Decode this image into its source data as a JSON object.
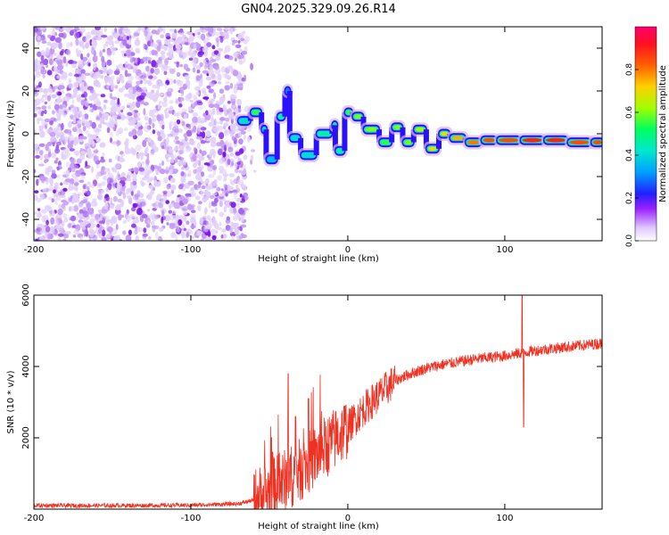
{
  "figure_title": "GN04.2025.329.09.26.R14",
  "chart_data": [
    {
      "type": "heatmap",
      "panel": "spectrogram",
      "xlabel": "Height of straight line (km)",
      "ylabel": "Frequency (Hz)",
      "xlim": [
        -200,
        162
      ],
      "ylim": [
        -50,
        50
      ],
      "xticks": [
        -200,
        -100,
        0,
        100
      ],
      "xtick_labels": [
        "-200",
        "-100",
        "0",
        "100"
      ],
      "yticks": [
        -40,
        -20,
        0,
        20,
        40
      ],
      "ytick_labels": [
        "-40",
        "-20",
        "0",
        "20",
        "40"
      ],
      "colorbar": {
        "label": "Normalized spectral amplitude",
        "range": [
          0,
          1
        ],
        "ticks": [
          0.0,
          0.2,
          0.4,
          0.6,
          0.8
        ],
        "tick_labels": [
          "0.0",
          "0.2",
          "0.4",
          "0.6",
          "0.8"
        ],
        "colormap": [
          "#ffffff",
          "#d6b3ff",
          "#8800ff",
          "#0000ff",
          "#00d8ff",
          "#00ff80",
          "#a0ff00",
          "#ffb000",
          "#ff2000",
          "#ff0060"
        ]
      },
      "noise_region": {
        "x_range": [
          -200,
          -65
        ],
        "amplitude": 0.15
      },
      "signal_track": [
        {
          "x": -70,
          "f": 6,
          "a": 0.4
        },
        {
          "x": -62,
          "f": 10,
          "a": 0.55
        },
        {
          "x": -55,
          "f": 2,
          "a": 0.4
        },
        {
          "x": -52,
          "f": -12,
          "a": 0.35
        },
        {
          "x": -45,
          "f": 8,
          "a": 0.45
        },
        {
          "x": -40,
          "f": 20,
          "a": 0.3
        },
        {
          "x": -37,
          "f": -2,
          "a": 0.4
        },
        {
          "x": -30,
          "f": -10,
          "a": 0.4
        },
        {
          "x": -20,
          "f": 0,
          "a": 0.45
        },
        {
          "x": -10,
          "f": 4,
          "a": 0.5
        },
        {
          "x": -8,
          "f": -8,
          "a": 0.45
        },
        {
          "x": -2,
          "f": 10,
          "a": 0.55
        },
        {
          "x": 3,
          "f": 8,
          "a": 0.6
        },
        {
          "x": 10,
          "f": 2,
          "a": 0.6
        },
        {
          "x": 20,
          "f": -4,
          "a": 0.55
        },
        {
          "x": 28,
          "f": 3,
          "a": 0.6
        },
        {
          "x": 35,
          "f": -4,
          "a": 0.6
        },
        {
          "x": 42,
          "f": 2,
          "a": 0.65
        },
        {
          "x": 50,
          "f": -7,
          "a": 0.7
        },
        {
          "x": 58,
          "f": 0,
          "a": 0.7
        },
        {
          "x": 65,
          "f": -2,
          "a": 0.75
        },
        {
          "x": 75,
          "f": -4,
          "a": 0.8
        },
        {
          "x": 85,
          "f": -3,
          "a": 0.85
        },
        {
          "x": 95,
          "f": -3,
          "a": 0.85
        },
        {
          "x": 110,
          "f": -3,
          "a": 0.9
        },
        {
          "x": 125,
          "f": -3,
          "a": 0.9
        },
        {
          "x": 140,
          "f": -4,
          "a": 0.85
        },
        {
          "x": 155,
          "f": -4,
          "a": 0.85
        }
      ]
    },
    {
      "type": "line",
      "panel": "snr",
      "xlabel": "Height of straight line (km)",
      "ylabel": "SNR (10 * v/v)",
      "xlim": [
        -200,
        162
      ],
      "ylim": [
        0,
        6000
      ],
      "xticks": [
        -200,
        -100,
        0,
        100
      ],
      "xtick_labels": [
        "-200",
        "-100",
        "0",
        "100"
      ],
      "yticks": [
        2000,
        4000,
        6000
      ],
      "ytick_labels": [
        "2000",
        "4000",
        "6000"
      ],
      "line_color": "#f03020",
      "envelope": [
        {
          "x": -200,
          "y": 100
        },
        {
          "x": -150,
          "y": 100
        },
        {
          "x": -100,
          "y": 110
        },
        {
          "x": -70,
          "y": 150
        },
        {
          "x": -60,
          "y": 250
        },
        {
          "x": -50,
          "y": 500
        },
        {
          "x": -40,
          "y": 800
        },
        {
          "x": -30,
          "y": 1100
        },
        {
          "x": -20,
          "y": 1500
        },
        {
          "x": -10,
          "y": 1900
        },
        {
          "x": 0,
          "y": 2300
        },
        {
          "x": 10,
          "y": 2800
        },
        {
          "x": 20,
          "y": 3200
        },
        {
          "x": 30,
          "y": 3600
        },
        {
          "x": 40,
          "y": 3800
        },
        {
          "x": 50,
          "y": 3950
        },
        {
          "x": 60,
          "y": 4050
        },
        {
          "x": 80,
          "y": 4200
        },
        {
          "x": 100,
          "y": 4300
        },
        {
          "x": 120,
          "y": 4450
        },
        {
          "x": 140,
          "y": 4550
        },
        {
          "x": 162,
          "y": 4650
        }
      ],
      "spikes": [
        {
          "x": -48,
          "y": 1600
        },
        {
          "x": -38,
          "y": 3800
        },
        {
          "x": -25,
          "y": 3100
        },
        {
          "x": 111,
          "y": 6000
        },
        {
          "x": 112,
          "y": 2300
        }
      ]
    }
  ]
}
